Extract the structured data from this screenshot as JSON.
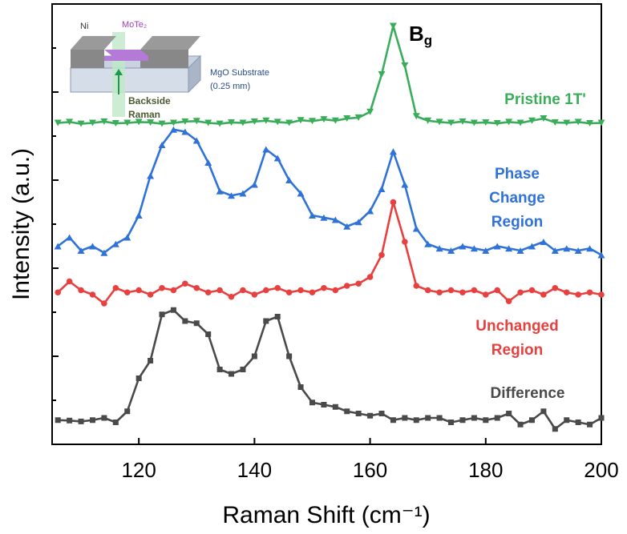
{
  "chart_data": {
    "type": "line",
    "x_label": "Raman Shift (cm⁻¹)",
    "y_label": "Intensity (a.u.)",
    "annotation": {
      "text": "B",
      "subscript": "g"
    },
    "inset": {
      "electrode": "Ni",
      "flake": "MoTe₂",
      "substrate": [
        "MgO Substrate",
        "(0.25 mm)"
      ],
      "beam": [
        "Backside",
        "Raman"
      ]
    },
    "x": [
      106,
      108,
      110,
      112,
      114,
      116,
      118,
      120,
      122,
      124,
      126,
      128,
      130,
      132,
      134,
      136,
      138,
      140,
      142,
      144,
      146,
      148,
      150,
      152,
      154,
      156,
      158,
      160,
      162,
      164,
      166,
      168,
      170,
      172,
      174,
      176,
      178,
      180,
      182,
      184,
      186,
      188,
      190,
      192,
      194,
      196,
      198,
      200
    ],
    "xlim": [
      105,
      200
    ],
    "xticks": [
      120,
      140,
      160,
      180,
      200
    ],
    "ylim": [
      0,
      10
    ],
    "yticks": [
      1,
      2,
      3,
      4,
      5,
      6,
      7,
      8,
      9
    ],
    "series": [
      {
        "name": "Pristine 1T'",
        "color": "#3aad5a",
        "marker": "triangle-down",
        "values": [
          7.3,
          7.32,
          7.28,
          7.3,
          7.33,
          7.29,
          7.3,
          7.32,
          7.31,
          7.28,
          7.3,
          7.33,
          7.34,
          7.3,
          7.28,
          7.31,
          7.3,
          7.33,
          7.35,
          7.32,
          7.3,
          7.36,
          7.34,
          7.38,
          7.35,
          7.4,
          7.42,
          7.55,
          8.4,
          9.5,
          8.6,
          7.45,
          7.35,
          7.32,
          7.3,
          7.33,
          7.3,
          7.31,
          7.29,
          7.32,
          7.3,
          7.35,
          7.4,
          7.31,
          7.3,
          7.32,
          7.29,
          7.3
        ]
      },
      {
        "name": "Phase Change Region",
        "color": "#2f72d8",
        "marker": "triangle-up",
        "values": [
          4.5,
          4.7,
          4.4,
          4.5,
          4.35,
          4.55,
          4.7,
          5.2,
          6.1,
          6.8,
          7.15,
          7.1,
          6.9,
          6.4,
          5.75,
          5.65,
          5.7,
          5.9,
          6.7,
          6.5,
          6.0,
          5.7,
          5.2,
          5.15,
          5.1,
          4.95,
          5.05,
          5.3,
          5.8,
          6.65,
          5.9,
          4.9,
          4.55,
          4.45,
          4.4,
          4.5,
          4.45,
          4.4,
          4.5,
          4.45,
          4.4,
          4.5,
          4.6,
          4.4,
          4.45,
          4.4,
          4.45,
          4.3
        ]
      },
      {
        "name": "Unchanged Region",
        "color": "#e8403e",
        "marker": "circle",
        "values": [
          3.45,
          3.7,
          3.5,
          3.4,
          3.2,
          3.55,
          3.45,
          3.5,
          3.4,
          3.55,
          3.5,
          3.65,
          3.55,
          3.45,
          3.5,
          3.35,
          3.5,
          3.4,
          3.5,
          3.55,
          3.45,
          3.5,
          3.45,
          3.55,
          3.5,
          3.6,
          3.65,
          3.8,
          4.3,
          5.5,
          4.6,
          3.6,
          3.5,
          3.45,
          3.5,
          3.45,
          3.5,
          3.4,
          3.5,
          3.25,
          3.45,
          3.5,
          3.4,
          3.55,
          3.45,
          3.4,
          3.45,
          3.4
        ]
      },
      {
        "name": "Difference",
        "color": "#4a4a4a",
        "marker": "square",
        "values": [
          0.55,
          0.54,
          0.52,
          0.55,
          0.6,
          0.5,
          0.75,
          1.5,
          1.9,
          2.95,
          3.05,
          2.8,
          2.75,
          2.5,
          1.7,
          1.6,
          1.7,
          2.0,
          2.8,
          2.9,
          2.0,
          1.3,
          0.95,
          0.9,
          0.85,
          0.75,
          0.7,
          0.65,
          0.7,
          0.55,
          0.6,
          0.55,
          0.6,
          0.6,
          0.5,
          0.55,
          0.6,
          0.55,
          0.6,
          0.7,
          0.45,
          0.55,
          0.75,
          0.35,
          0.55,
          0.5,
          0.45,
          0.6
        ]
      }
    ]
  }
}
